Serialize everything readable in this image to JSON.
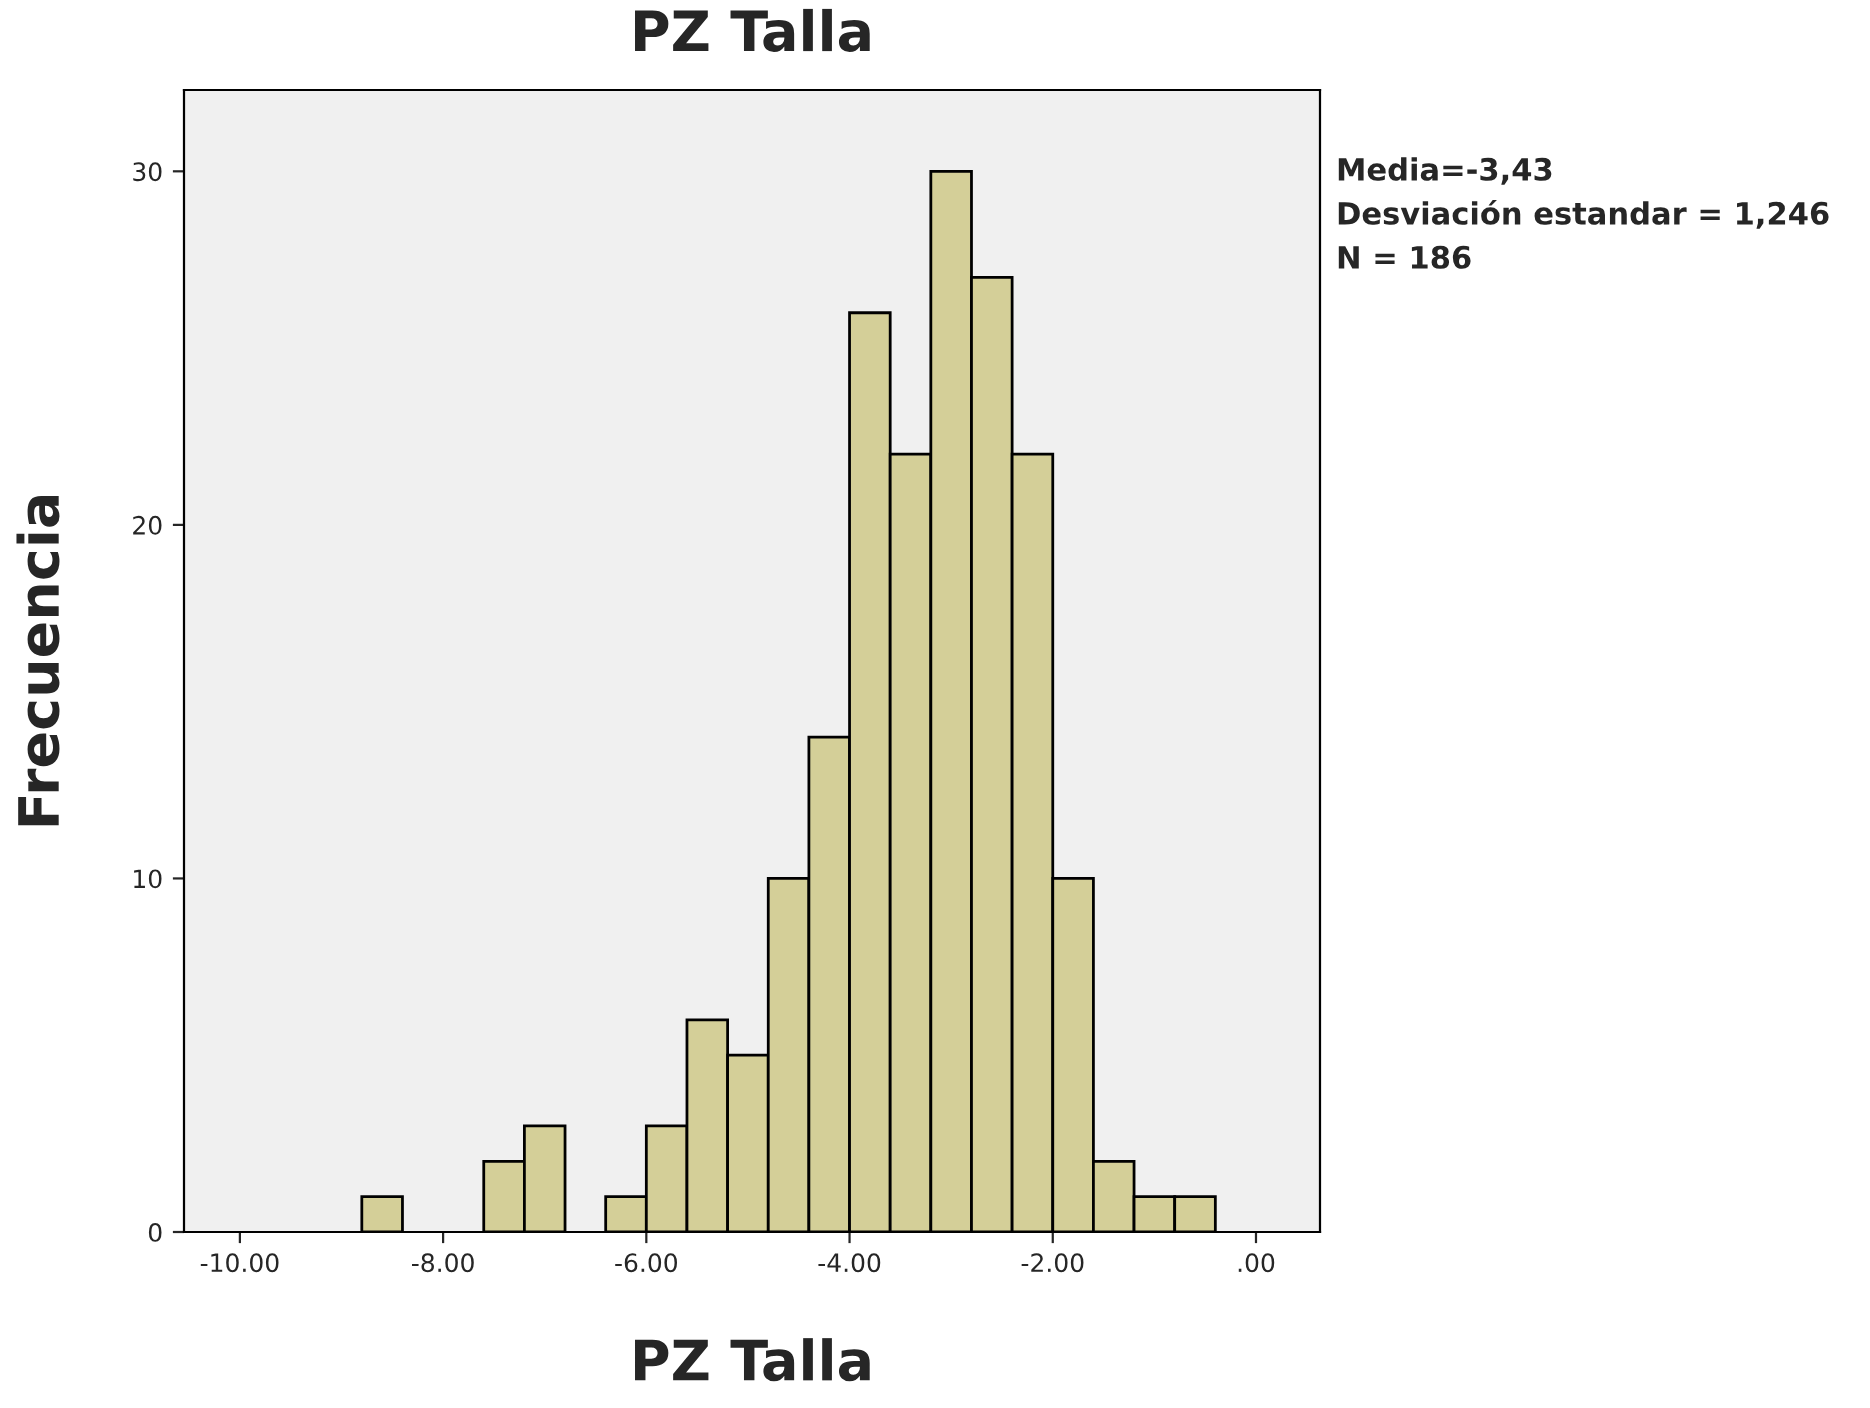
{
  "chart_data": {
    "type": "histogram",
    "title": "PZ Talla",
    "xlabel": "PZ Talla",
    "ylabel": "Frecuencia",
    "bins": [
      -8.8,
      -8.4,
      -8.0,
      -7.6,
      -7.2,
      -6.8,
      -6.4,
      -6.0,
      -5.6,
      -5.2,
      -4.8,
      -4.4,
      -4.0,
      -3.6,
      -3.2,
      -2.8,
      -2.4,
      -2.0,
      -1.6,
      -1.2,
      -0.8,
      -0.4
    ],
    "values": [
      1,
      0,
      0,
      2,
      3,
      0,
      1,
      3,
      6,
      5,
      10,
      14,
      26,
      22,
      30,
      27,
      22,
      10,
      2,
      1,
      1
    ],
    "color": "#d4cf98",
    "xlim": [
      -10.55,
      0.63
    ],
    "ylim": [
      0,
      32.3
    ],
    "xticks": [
      {
        "value": -10,
        "label": "-10.00"
      },
      {
        "value": -8,
        "label": "-8.00"
      },
      {
        "value": -6,
        "label": "-6.00"
      },
      {
        "value": -4,
        "label": "-4.00"
      },
      {
        "value": -2,
        "label": "-2.00"
      },
      {
        "value": 0,
        "label": ".00"
      }
    ],
    "yticks": [
      0,
      10,
      20,
      30
    ],
    "grid": false,
    "annotations": [
      "Media=-3,43",
      "Desviación estandar = 1,246",
      "N = 186"
    ]
  }
}
